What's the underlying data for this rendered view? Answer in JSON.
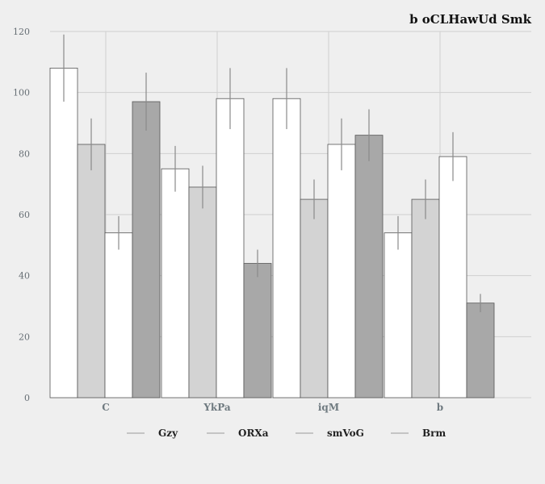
{
  "chart_data": {
    "type": "bar",
    "title": "b oCLHawUd Smk",
    "categories": [
      "C",
      "YkPa",
      "iqM",
      "b"
    ],
    "series": [
      {
        "name": "Gzy",
        "color": "#ffffff",
        "values": [
          108,
          75,
          98,
          54
        ],
        "errors": [
          11,
          7.5,
          10,
          5.5
        ]
      },
      {
        "name": "ORXa",
        "color": "#d3d3d3",
        "values": [
          83,
          69,
          65,
          65
        ],
        "errors": [
          8.5,
          7,
          6.5,
          6.5
        ]
      },
      {
        "name": "smVoG",
        "color": "#ffffff",
        "values": [
          54,
          98,
          83,
          79
        ],
        "errors": [
          5.5,
          10,
          8.5,
          8
        ]
      },
      {
        "name": "Brm",
        "color": "#a8a8a8",
        "values": [
          97,
          44,
          86,
          31
        ],
        "errors": [
          9.5,
          4.5,
          8.5,
          3
        ]
      }
    ],
    "ylim": [
      0,
      120
    ],
    "yticks": [
      0,
      20,
      40,
      60,
      80,
      100,
      120
    ],
    "xlabel": "",
    "ylabel": "",
    "grid": true,
    "legend_position": "bottom"
  }
}
